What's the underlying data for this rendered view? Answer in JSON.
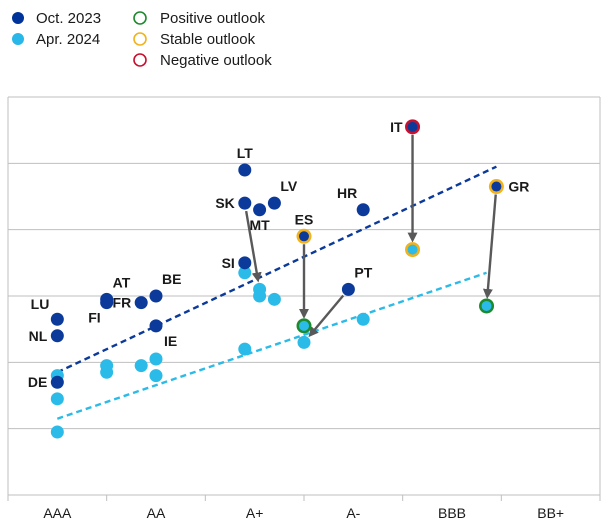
{
  "chart_data": {
    "type": "scatter",
    "title": "",
    "xlabel": "",
    "ylabel": "",
    "categories": [
      "AAA",
      "AA",
      "A+",
      "A-",
      "BBB",
      "BB+"
    ],
    "xlim": [
      0,
      6
    ],
    "ylim": [
      0,
      6
    ],
    "grid": "horizontal",
    "legend_placement": "top-left",
    "legend": {
      "series": [
        {
          "label": "Oct. 2023",
          "color": "#003399"
        },
        {
          "label": "Apr. 2024",
          "color": "#29b6e8"
        }
      ],
      "outlooks": [
        {
          "label": "Positive outlook",
          "color": "#1e8a2e"
        },
        {
          "label": "Stable outlook",
          "color": "#f2b21b"
        },
        {
          "label": "Negative outlook",
          "color": "#c8102e"
        }
      ]
    },
    "colors": {
      "oct": "#0b3a9a",
      "apr": "#2bbbe8",
      "grid": "#bfbfbf",
      "arrow": "#595959",
      "trend_oct": "#0b3a9a",
      "trend_apr": "#2bbbe8"
    },
    "series": [
      {
        "name": "Oct. 2023",
        "points": [
          {
            "label": "LU",
            "x": 0.5,
            "y": 2.65,
            "label_pos": "left-up"
          },
          {
            "label": "NL",
            "x": 0.5,
            "y": 2.4,
            "label_pos": "left"
          },
          {
            "label": "DE",
            "x": 0.5,
            "y": 1.7,
            "label_pos": "left"
          },
          {
            "label": "AT",
            "x": 1.0,
            "y": 2.95,
            "label_pos": "up-right"
          },
          {
            "label": "FI",
            "x": 1.0,
            "y": 2.9,
            "label_pos": "down-left"
          },
          {
            "label": "BE",
            "x": 1.5,
            "y": 3.0,
            "label_pos": "up-right"
          },
          {
            "label": "FR",
            "x": 1.35,
            "y": 2.9,
            "label_pos": "left"
          },
          {
            "label": "IE",
            "x": 1.5,
            "y": 2.55,
            "label_pos": "down-right"
          },
          {
            "label": "LT",
            "x": 2.4,
            "y": 4.9,
            "label_pos": "up"
          },
          {
            "label": "SK",
            "x": 2.4,
            "y": 4.4,
            "label_pos": "left"
          },
          {
            "label": "LV",
            "x": 2.7,
            "y": 4.4,
            "label_pos": "up-right"
          },
          {
            "label": "MT",
            "x": 2.55,
            "y": 4.3,
            "label_pos": "down"
          },
          {
            "label": "SI",
            "x": 2.4,
            "y": 3.5,
            "label_pos": "left"
          },
          {
            "label": "PT",
            "x": 3.45,
            "y": 3.1,
            "label_pos": "up-right"
          },
          {
            "label": "HR",
            "x": 3.6,
            "y": 4.3,
            "label_pos": "up-left"
          },
          {
            "label": "ES",
            "x": 3.0,
            "y": 3.9,
            "label_pos": "up",
            "outlook": "stable"
          },
          {
            "label": "IT",
            "x": 4.1,
            "y": 5.55,
            "label_pos": "left",
            "outlook": "negative"
          },
          {
            "label": "GR",
            "x": 4.95,
            "y": 4.65,
            "label_pos": "right",
            "outlook": "stable"
          }
        ]
      },
      {
        "name": "Apr. 2024",
        "points": [
          {
            "x": 0.5,
            "y": 1.8
          },
          {
            "x": 0.5,
            "y": 1.45
          },
          {
            "x": 0.5,
            "y": 0.95
          },
          {
            "x": 1.0,
            "y": 1.95
          },
          {
            "x": 1.0,
            "y": 1.85
          },
          {
            "x": 1.5,
            "y": 2.05
          },
          {
            "x": 1.35,
            "y": 1.95
          },
          {
            "x": 1.5,
            "y": 1.8
          },
          {
            "x": 2.4,
            "y": 3.35
          },
          {
            "x": 2.55,
            "y": 3.1
          },
          {
            "x": 2.55,
            "y": 3.0
          },
          {
            "x": 2.7,
            "y": 2.95
          },
          {
            "x": 2.4,
            "y": 2.2
          },
          {
            "x": 3.0,
            "y": 2.55,
            "outlook": "positive"
          },
          {
            "x": 3.0,
            "y": 2.3
          },
          {
            "x": 3.6,
            "y": 2.65
          },
          {
            "x": 4.1,
            "y": 3.7,
            "outlook": "stable"
          },
          {
            "x": 4.85,
            "y": 2.85,
            "outlook": "positive"
          }
        ]
      }
    ],
    "trendlines": [
      {
        "series": "Oct. 2023",
        "x": [
          0.5,
          4.95
        ],
        "y": [
          1.85,
          4.95
        ]
      },
      {
        "series": "Apr. 2024",
        "x": [
          0.5,
          4.85
        ],
        "y": [
          1.15,
          3.35
        ]
      }
    ],
    "arrows": [
      {
        "from": [
          2.4,
          4.4
        ],
        "to": [
          2.55,
          3.1
        ]
      },
      {
        "from": [
          3.0,
          3.9
        ],
        "to": [
          3.0,
          2.55
        ]
      },
      {
        "from": [
          3.45,
          3.1
        ],
        "to": [
          3.0,
          2.3
        ]
      },
      {
        "from": [
          4.1,
          5.55
        ],
        "to": [
          4.1,
          3.7
        ]
      },
      {
        "from": [
          4.95,
          4.65
        ],
        "to": [
          4.85,
          2.85
        ]
      }
    ]
  }
}
